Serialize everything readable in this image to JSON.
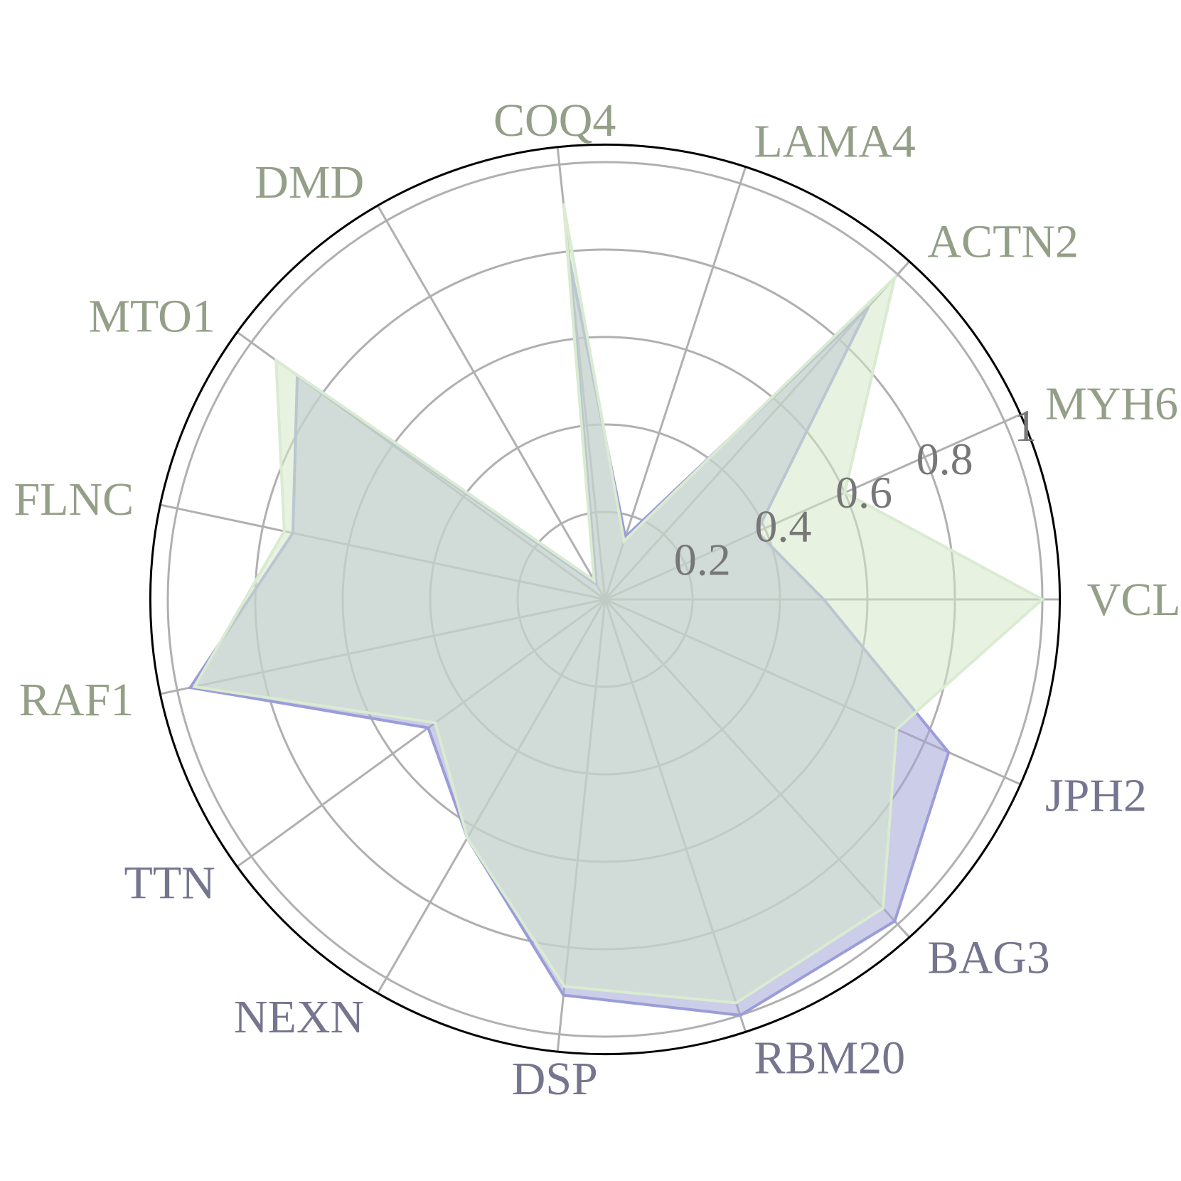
{
  "chart_data": {
    "type": "radar",
    "categories": [
      "VCL",
      "MYH6",
      "ACTN2",
      "LAMA4",
      "COQ4",
      "DMD",
      "MTO1",
      "FLNC",
      "RAF1",
      "TTN",
      "NEXN",
      "DSP",
      "RBM20",
      "BAG3",
      "JPH2"
    ],
    "label_colors": [
      "#939f87",
      "#939f87",
      "#939f87",
      "#939f87",
      "#939f87",
      "#939f87",
      "#939f87",
      "#939f87",
      "#939f87",
      "#75758f",
      "#75758f",
      "#75758f",
      "#75758f",
      "#75758f",
      "#75758f"
    ],
    "radial_ticks": [
      "0.2",
      "0.4",
      "0.6",
      "0.8",
      "1"
    ],
    "radial_tick_values": [
      0.2,
      0.4,
      0.6,
      0.8,
      1.0
    ],
    "rlim": [
      0,
      1.04
    ],
    "grid": true,
    "series": [
      {
        "values": [
          0.5,
          0.38,
          0.9,
          0.15,
          0.78,
          0.04,
          0.87,
          0.73,
          0.97,
          0.5,
          0.63,
          0.91,
          1.0,
          0.99,
          0.86
        ],
        "line_color": "#9a9dd9",
        "fill_color": "#a2a4d6",
        "fill_opacity": 0.55
      },
      {
        "values": [
          1.0,
          0.6,
          0.99,
          0.14,
          0.91,
          0.05,
          0.93,
          0.75,
          0.96,
          0.48,
          0.63,
          0.89,
          0.97,
          0.95,
          0.73
        ],
        "line_color": "#d9ebd1",
        "fill_color": "#d6e8c9",
        "fill_opacity": 0.55
      }
    ]
  }
}
